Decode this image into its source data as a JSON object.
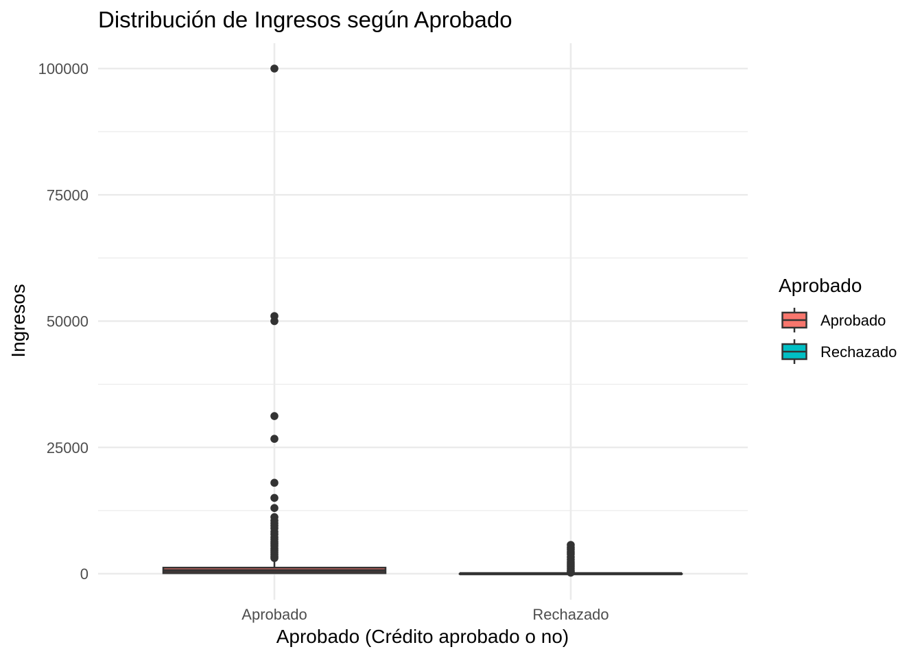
{
  "chart_data": {
    "type": "boxplot",
    "title": "Distribución de Ingresos según Aprobado",
    "xlabel": "Aprobado (Crédito aprobado o no)",
    "ylabel": "Ingresos",
    "ylim": [
      -5000,
      105000
    ],
    "yticks": [
      0,
      25000,
      50000,
      75000,
      100000
    ],
    "ytick_labels": [
      "0",
      "25000",
      "50000",
      "75000",
      "100000"
    ],
    "categories": [
      "Aprobado",
      "Rechazado"
    ],
    "grid": true,
    "legend": {
      "title": "Aprobado",
      "position": "right",
      "entries": [
        "Aprobado",
        "Rechazado"
      ]
    },
    "colors": {
      "Aprobado": "#F8766D",
      "Rechazado": "#00BFC4",
      "outline": "#333333"
    },
    "series": [
      {
        "name": "Aprobado",
        "min": 0,
        "q1": 100,
        "median": 600,
        "q3": 1200,
        "max": 2900,
        "outliers": [
          100000,
          51000,
          50000,
          31200,
          26700,
          18000,
          15000,
          13000,
          11200,
          10500,
          10000,
          9500,
          9000,
          8300,
          7800,
          7200,
          6800,
          6300,
          5900,
          5500,
          5000,
          4600,
          4200,
          3800,
          3400,
          3100
        ]
      },
      {
        "name": "Rechazado",
        "min": 0,
        "q1": 0,
        "median": 0,
        "q3": 0,
        "max": 0,
        "outliers": [
          5700,
          5200,
          4800,
          4300,
          3900,
          3300,
          2800,
          2300,
          1900,
          1500,
          1100,
          700,
          400,
          200
        ]
      }
    ]
  }
}
